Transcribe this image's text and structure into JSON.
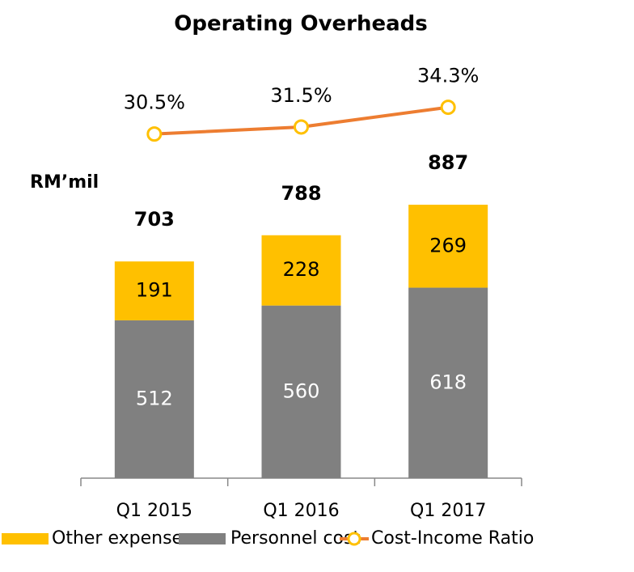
{
  "chart_data": {
    "type": "bar",
    "title": "Operating Overheads",
    "y_label": "RM’mil",
    "categories": [
      "Q1 2015",
      "Q1 2016",
      "Q1 2017"
    ],
    "series": [
      {
        "name": "Other expenses",
        "color": "#ffc000",
        "values": [
          191,
          228,
          269
        ]
      },
      {
        "name": "Personnel cost",
        "color": "#808080",
        "values": [
          512,
          560,
          618
        ]
      },
      {
        "name": "Cost-Income Ratio",
        "color": "#ed7d31",
        "type": "line",
        "axis": "y2",
        "values": [
          30.5,
          31.5,
          34.3
        ],
        "value_labels": [
          "30.5%",
          "31.5%",
          "34.3%"
        ]
      }
    ],
    "totals": [
      703,
      788,
      887
    ],
    "ylim": [
      0,
      1000
    ],
    "y2lim": [
      20,
      40
    ],
    "stacked": true,
    "legend": "bottom"
  }
}
